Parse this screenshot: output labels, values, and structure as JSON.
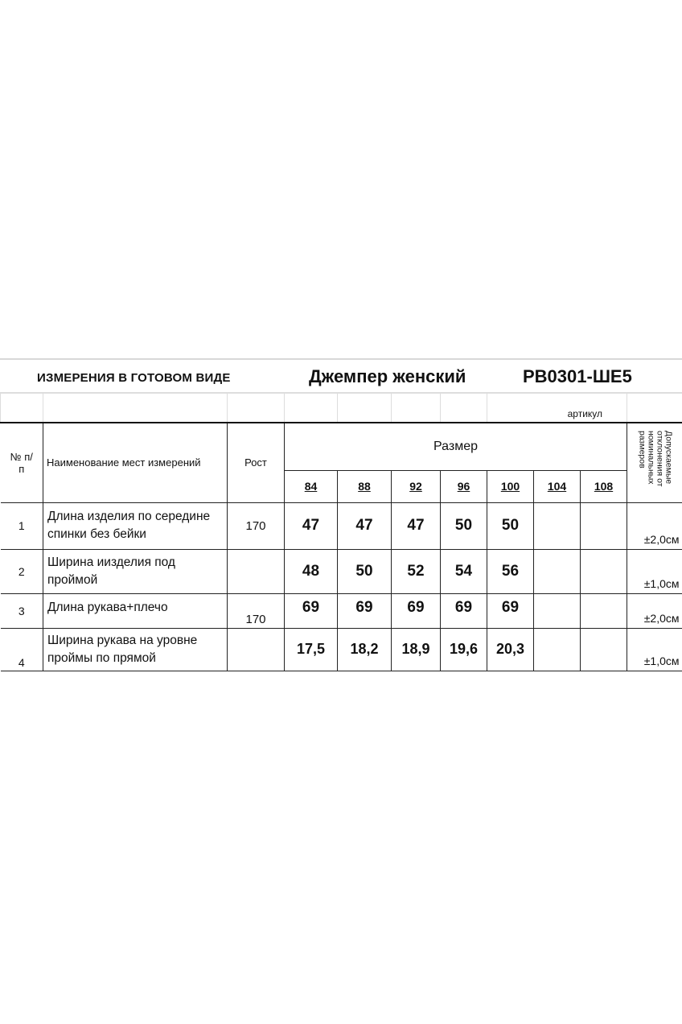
{
  "header": {
    "left_title": "ИЗМЕРЕНИЯ  В ГОТОВОМ  ВИДЕ",
    "product": "Джемпер женский",
    "article_code": "PB0301-ШЕ5",
    "article_label": "артикул"
  },
  "columns": {
    "number": "№ п/п",
    "name": "Наименование мест измерений",
    "height": "Рост",
    "size_group": "Размер",
    "sizes": [
      "84",
      "88",
      "92",
      "96",
      "100",
      "104",
      "108"
    ],
    "tolerance": "Допускаемые отклонения от номинальных размеров"
  },
  "rows": [
    {
      "num": "1",
      "name": "Длина изделия по середине спинки без бейки",
      "height": "170",
      "values": [
        "47",
        "47",
        "47",
        "50",
        "50",
        "",
        ""
      ],
      "tolerance": "±2,0см"
    },
    {
      "num": "2",
      "name": "Ширина иизделия под проймой",
      "height": "",
      "values": [
        "48",
        "50",
        "52",
        "54",
        "56",
        "",
        ""
      ],
      "tolerance": "±1,0см"
    },
    {
      "num": "3",
      "name": "Длина рукава+плечо",
      "height": "170",
      "values": [
        "69",
        "69",
        "69",
        "69",
        "69",
        "",
        ""
      ],
      "tolerance": "±2,0см"
    },
    {
      "num": "4",
      "name": "Ширина рукава на уровне проймы по прямой",
      "height": "",
      "values": [
        "17,5",
        "18,2",
        "18,9",
        "19,6",
        "20,3",
        "",
        ""
      ],
      "tolerance": "±1,0см"
    }
  ]
}
